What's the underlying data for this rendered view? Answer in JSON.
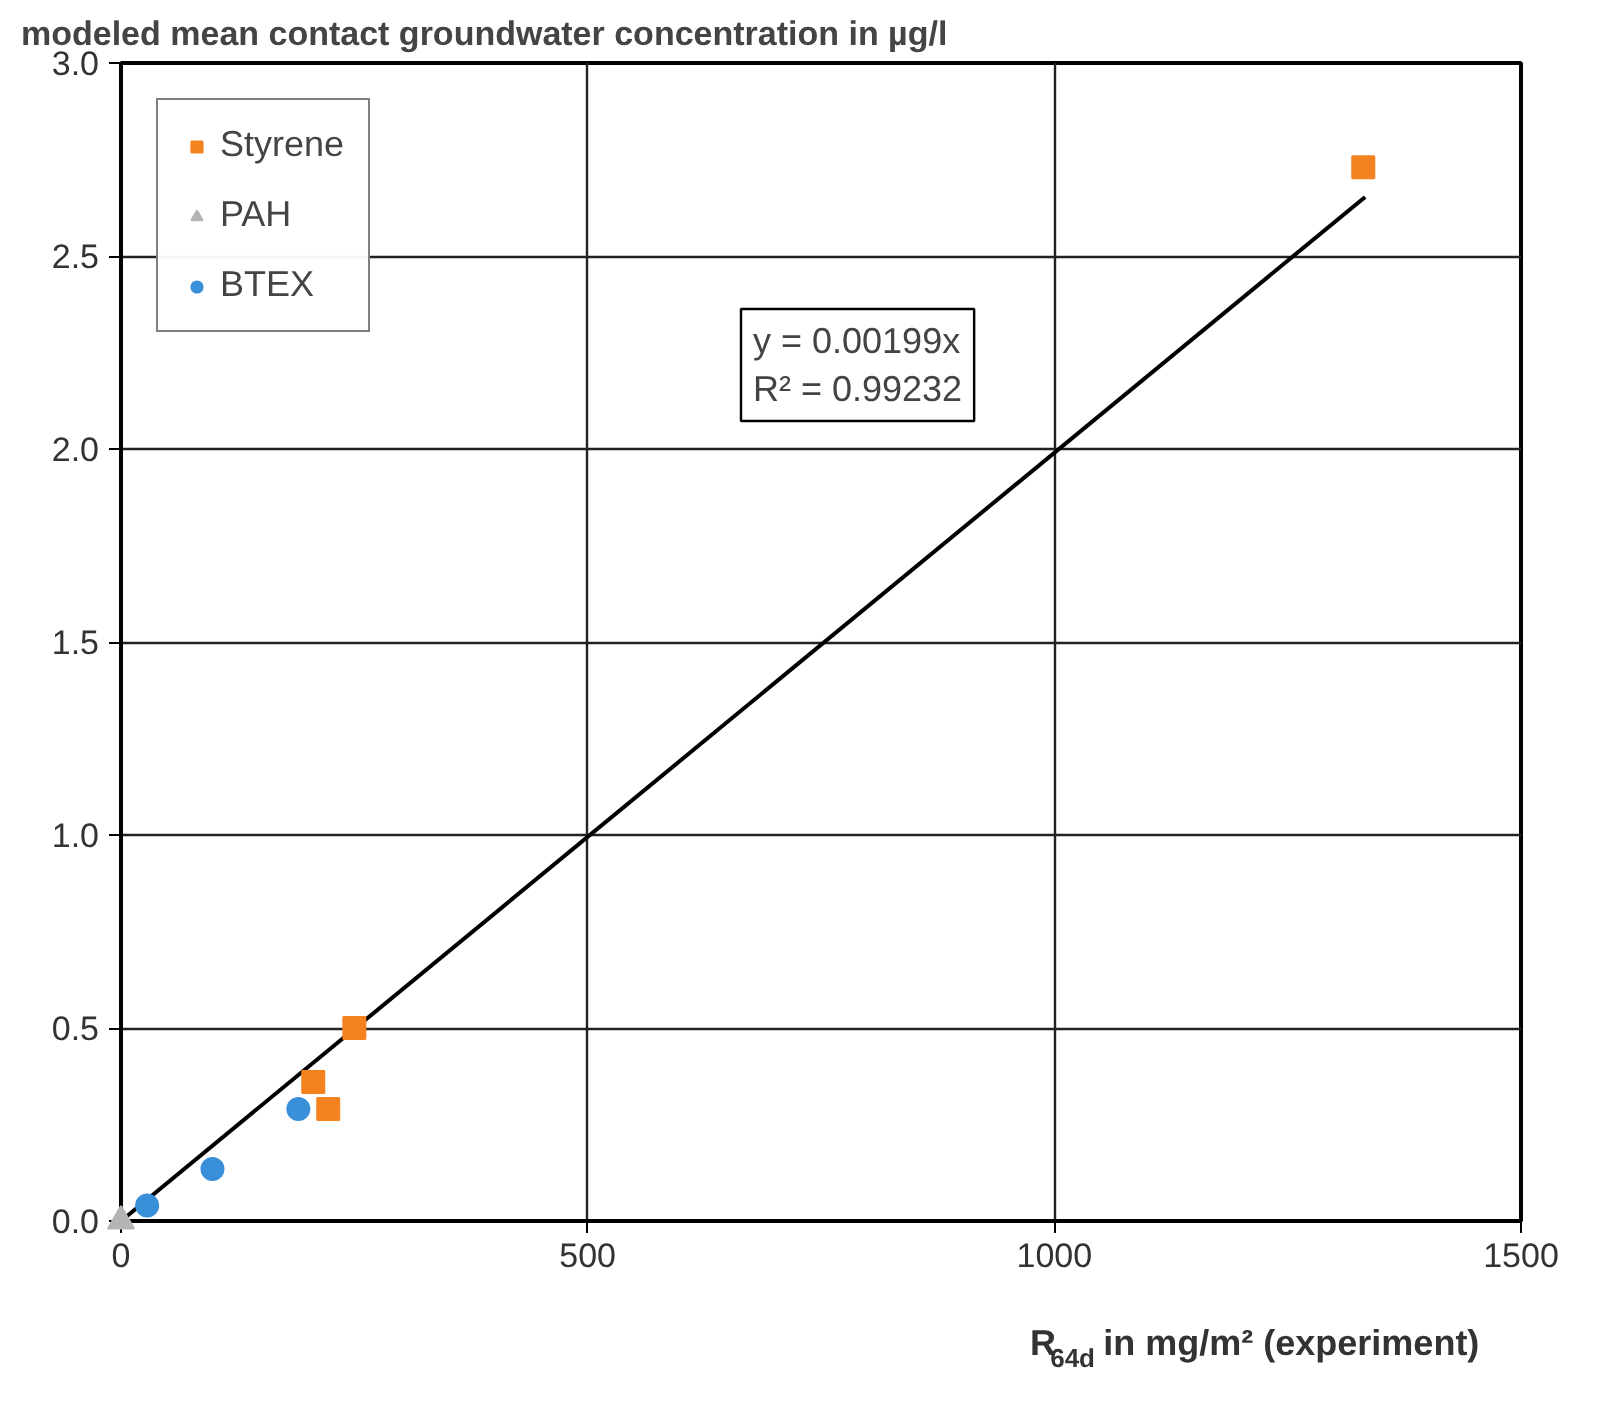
{
  "chart_data": {
    "type": "scatter",
    "title": "modeled mean contact groundwater concentration in µg/l",
    "xlabel": "R$_{64d}$ in mg/m² (experiment)",
    "xlim": [
      0,
      1500
    ],
    "xticks": [
      0,
      500,
      1000,
      1500
    ],
    "ylim": [
      0,
      3
    ],
    "yticks": [
      {
        "value": 0,
        "label": "0.0"
      },
      0.5,
      {
        "value": 1,
        "label": "1.0"
      },
      1.5,
      {
        "value": 2,
        "label": "2.0"
      },
      2.5,
      {
        "value": 3,
        "label": "3.0"
      }
    ],
    "grid": true,
    "legend": "top left",
    "annotations": [
      "y = 0.00199x\nR² = 0.99232"
    ],
    "series": [
      {
        "name": "Styrene",
        "color": "#f58220",
        "marker": "square",
        "x": [
          1331,
          250,
          206,
          222
        ],
        "values": [
          2.73,
          0.5,
          0.36,
          0.29
        ]
      },
      {
        "name": "PAH",
        "color": "#b4b4b4",
        "marker": "triangle",
        "x": [
          0
        ],
        "values": [
          0
        ]
      },
      {
        "name": "BTEX",
        "color": "#3a8fd9",
        "marker": "circle",
        "x": [
          28,
          98,
          190
        ],
        "values": [
          0.04,
          0.135,
          0.29
        ]
      },
      {
        "type": "line",
        "color": "#000000",
        "marker": "none",
        "x": [
          0,
          1333
        ],
        "values": [
          0,
          2.653
        ]
      }
    ]
  }
}
